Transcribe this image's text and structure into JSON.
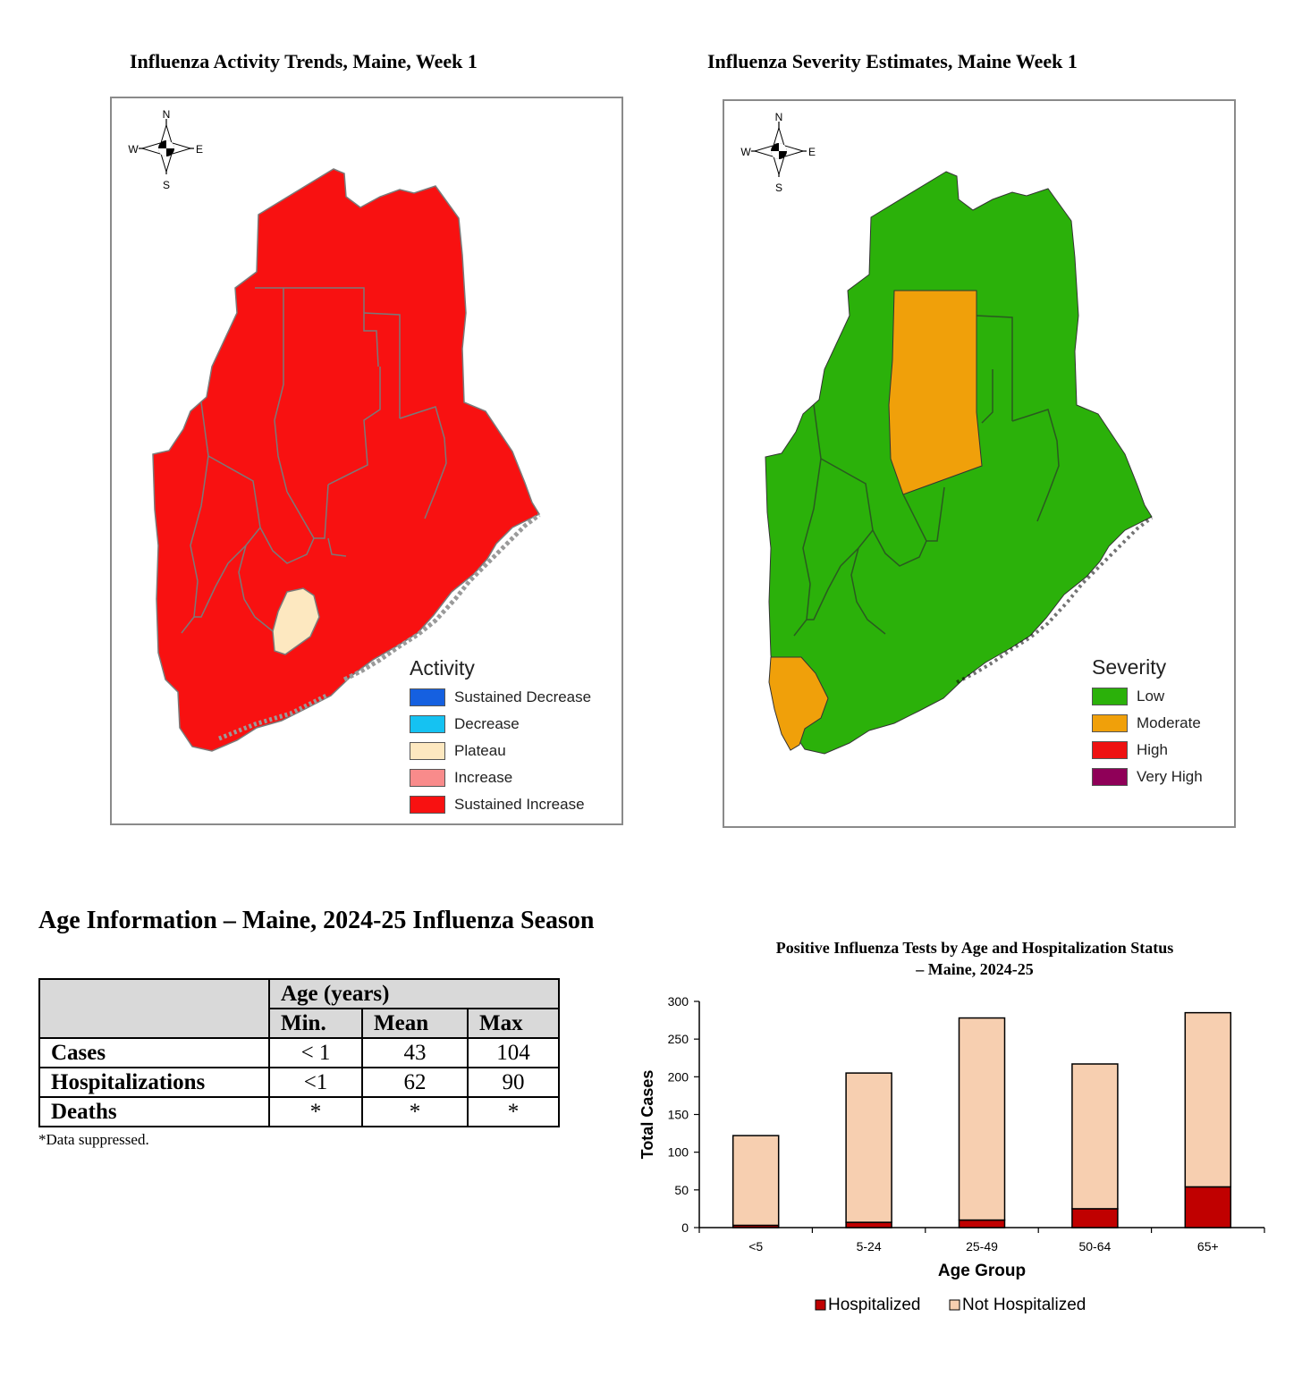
{
  "maps": {
    "activity": {
      "title": "Influenza Activity Trends, Maine,  Week 1",
      "legend_title": "Activity",
      "legend": [
        {
          "label": "Sustained Decrease",
          "color": "#1560e0"
        },
        {
          "label": "Decrease",
          "color": "#15c2f2"
        },
        {
          "label": "Plateau",
          "color": "#fde8c0"
        },
        {
          "label": "Increase",
          "color": "#f98b8b"
        },
        {
          "label": "Sustained Increase",
          "color": "#f81111"
        }
      ]
    },
    "severity": {
      "title": "Influenza Severity Estimates, Maine Week  1",
      "legend_title": "Severity",
      "legend": [
        {
          "label": "Low",
          "color": "#2bb10a"
        },
        {
          "label": "Moderate",
          "color": "#f0a00a"
        },
        {
          "label": "High",
          "color": "#ee1111"
        },
        {
          "label": "Very High",
          "color": "#8f0058"
        }
      ]
    },
    "compass": {
      "n": "N",
      "s": "S",
      "e": "E",
      "w": "W"
    },
    "border_color": "#7a7a7a"
  },
  "age_table": {
    "title": "Age Information – Maine, 2024-25 Influenza Season",
    "group_header": "Age (years)",
    "columns": [
      "Min.",
      "Mean",
      "Max"
    ],
    "rows": [
      {
        "label": "Cases",
        "min": "< 1",
        "mean": "43",
        "max": "104"
      },
      {
        "label": "Hospitalizations",
        "min": "<1",
        "mean": "62",
        "max": "90"
      },
      {
        "label": "Deaths",
        "min": "*",
        "mean": "*",
        "max": "*"
      }
    ],
    "note": "*Data suppressed."
  },
  "chart_data": {
    "type": "bar",
    "stacked": true,
    "title": "Positive Influenza Tests by Age and Hospitalization Status",
    "subtitle": "– Maine, 2024-25",
    "xlabel": "Age Group",
    "ylabel": "Total Cases",
    "categories": [
      "<5",
      "5-24",
      "25-49",
      "50-64",
      "65+"
    ],
    "series": [
      {
        "name": "Hospitalized",
        "color": "#c00000",
        "values": [
          3,
          7,
          10,
          25,
          54
        ]
      },
      {
        "name": "Not Hospitalized",
        "color": "#f7cfb0",
        "values": [
          119,
          198,
          268,
          192,
          231
        ]
      }
    ],
    "ylim": [
      0,
      300
    ],
    "yticks": [
      0,
      50,
      100,
      150,
      200,
      250,
      300
    ],
    "grid": false,
    "legend_position": "bottom"
  }
}
